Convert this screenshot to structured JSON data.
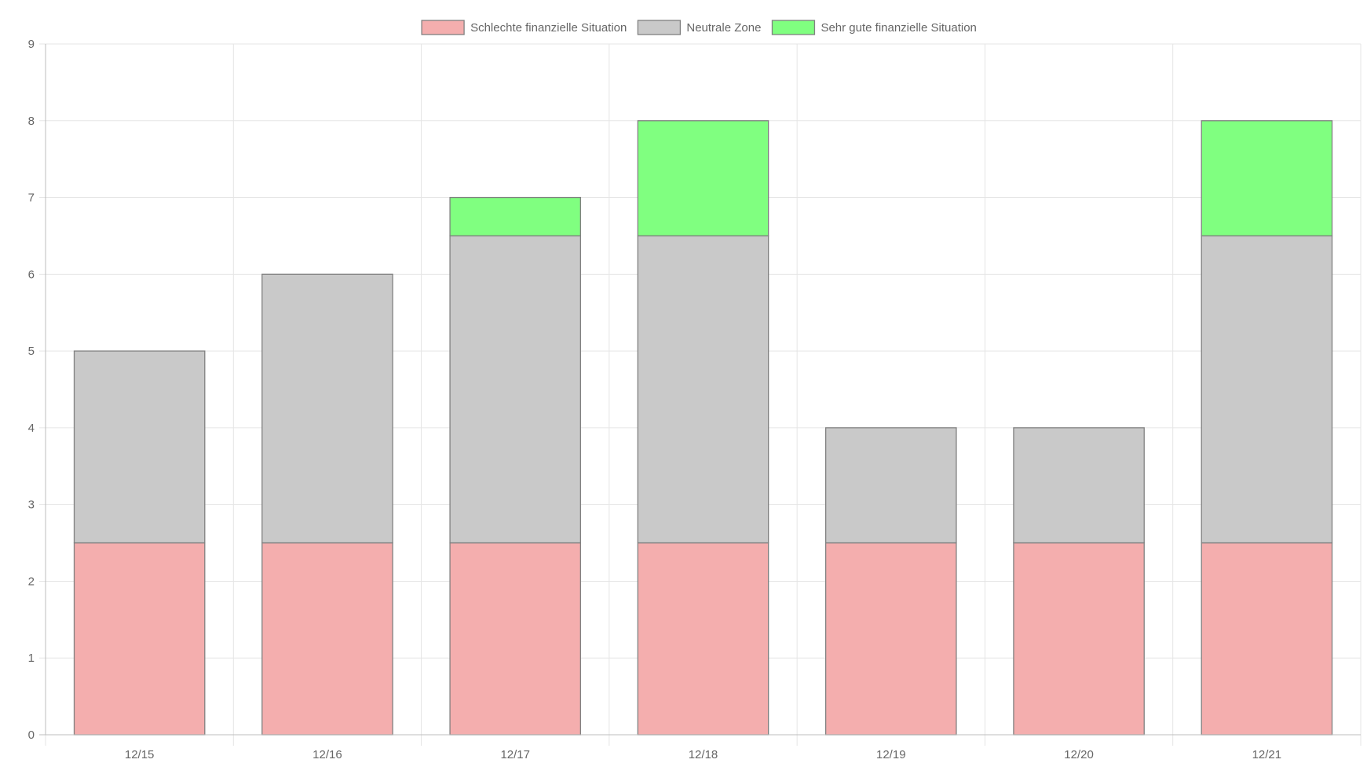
{
  "chart_data": {
    "type": "bar",
    "stacked": true,
    "title": "",
    "xlabel": "",
    "ylabel": "",
    "categories": [
      "12/15",
      "12/16",
      "12/17",
      "12/18",
      "12/19",
      "12/20",
      "12/21"
    ],
    "ylim": [
      0,
      9
    ],
    "yticks": [
      0,
      1,
      2,
      3,
      4,
      5,
      6,
      7,
      8,
      9
    ],
    "grid": true,
    "legend_position": "top-center",
    "series": [
      {
        "name": "Schlechte finanzielle Situation",
        "color": "#f4aeae",
        "values": [
          2.5,
          2.5,
          2.5,
          2.5,
          2.5,
          2.5,
          2.5
        ]
      },
      {
        "name": "Neutrale Zone",
        "color": "#c9c9c9",
        "values": [
          2.5,
          3.5,
          4.0,
          4.0,
          1.5,
          1.5,
          4.0
        ]
      },
      {
        "name": "Sehr gute finanzielle Situation",
        "color": "#80ff80",
        "values": [
          0,
          0,
          0.5,
          1.5,
          0,
          0,
          1.5
        ]
      }
    ],
    "bar_border_color": "#808080",
    "grid_color": "#e5e5e5",
    "axis_color": "#bdbdbd"
  }
}
